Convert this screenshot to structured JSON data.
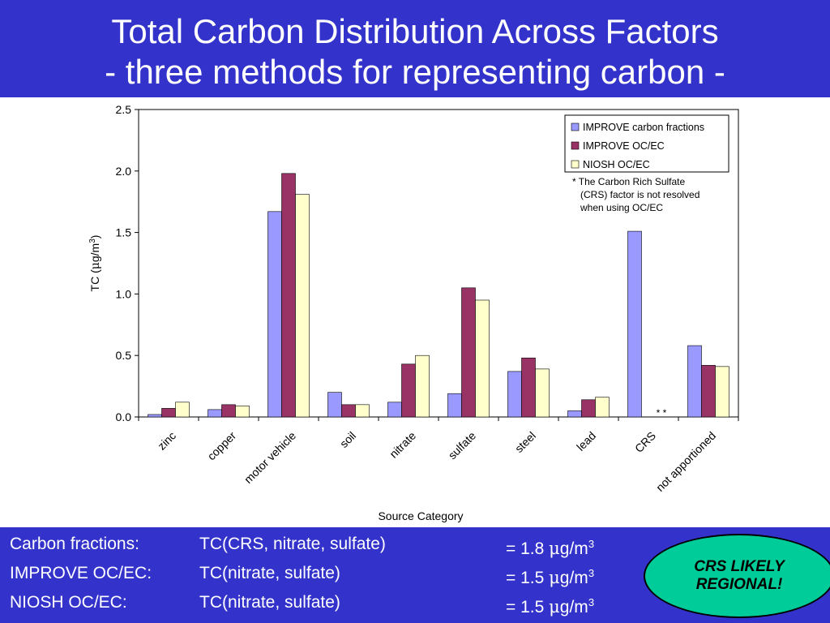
{
  "header": {
    "title_line1": "Total Carbon Distribution Across Factors",
    "title_line2": "- three methods for representing carbon -"
  },
  "colors": {
    "header_bg": "#3333cc",
    "series": [
      "#9999ff",
      "#993366",
      "#ffffcc"
    ]
  },
  "chart_data": {
    "type": "bar",
    "title": "",
    "xlabel": "Source Category",
    "ylabel_main": "TC (",
    "ylabel_mu": "μ",
    "ylabel_unit": "g/m",
    "ylabel_sup": "3",
    "ylabel_close": ")",
    "ylim": [
      0,
      2.5
    ],
    "yticks": [
      "0.0",
      "0.5",
      "1.0",
      "1.5",
      "2.0",
      "2.5"
    ],
    "categories": [
      "zinc",
      "copper",
      "motor vehicle",
      "soil",
      "nitrate",
      "sulfate",
      "steel",
      "lead",
      "CRS",
      "not apportioned"
    ],
    "series": [
      {
        "name": "IMPROVE carbon fractions",
        "values": [
          0.02,
          0.06,
          1.67,
          0.2,
          0.12,
          0.19,
          0.37,
          0.05,
          1.51,
          0.58
        ]
      },
      {
        "name": "IMPROVE OC/EC",
        "values": [
          0.07,
          0.1,
          1.98,
          0.1,
          0.43,
          1.05,
          0.48,
          0.14,
          null,
          0.42
        ]
      },
      {
        "name": "NIOSH OC/EC",
        "values": [
          0.12,
          0.09,
          1.81,
          0.1,
          0.5,
          0.95,
          0.39,
          0.16,
          null,
          0.41
        ]
      }
    ],
    "legend_position": "top-right",
    "grid": false,
    "asterisk_mark": "* *",
    "note": [
      "* The Carbon Rich Sulfate",
      "(CRS) factor is not resolved",
      "when using OC/EC"
    ]
  },
  "footer": {
    "rows": [
      {
        "label": "Carbon fractions:",
        "expr": "TC(CRS, nitrate, sulfate)",
        "eq": "= 1.8 ",
        "mu": "μ",
        "unit": "g/m",
        "sup": "3"
      },
      {
        "label": "IMPROVE OC/EC:",
        "expr": "TC(nitrate, sulfate)",
        "eq": "= 1.5 ",
        "mu": "μ",
        "unit": "g/m",
        "sup": "3"
      },
      {
        "label": "NIOSH OC/EC:",
        "expr": "TC(nitrate, sulfate)",
        "eq": "= 1.5 ",
        "mu": "μ",
        "unit": "g/m",
        "sup": "3"
      }
    ],
    "callout_line1": "CRS LIKELY",
    "callout_line2": "REGIONAL!"
  }
}
